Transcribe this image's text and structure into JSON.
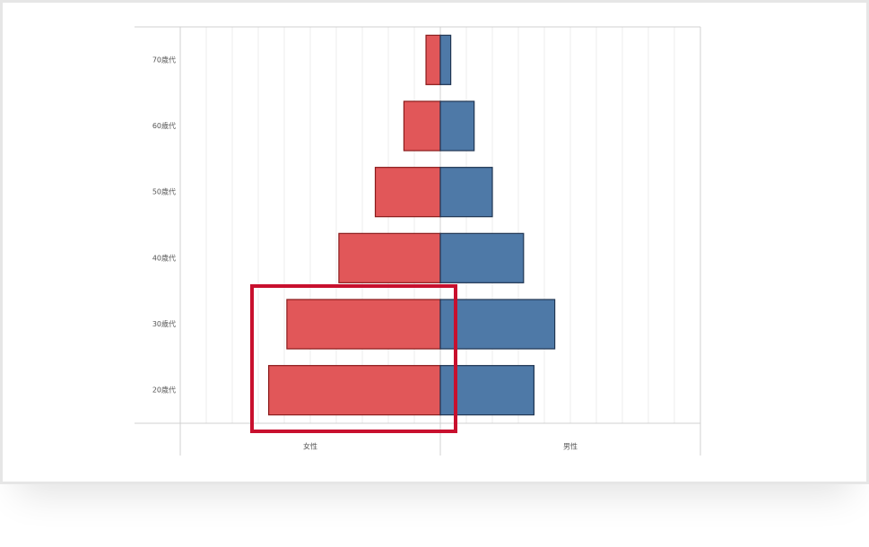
{
  "chart_data": {
    "type": "pyramid",
    "categories": [
      "70歳代",
      "60歳代",
      "50歳代",
      "40歳代",
      "30歳代",
      "20歳代"
    ],
    "series": [
      {
        "name": "女性",
        "color": "#e15759",
        "values": [
          0.55,
          1.4,
          2.5,
          3.9,
          5.9,
          6.6
        ]
      },
      {
        "name": "男性",
        "color": "#4e79a7",
        "values": [
          0.4,
          1.3,
          2.0,
          3.2,
          4.4,
          3.6
        ]
      }
    ],
    "xlim": [
      -10,
      10
    ],
    "grid": true
  }
}
